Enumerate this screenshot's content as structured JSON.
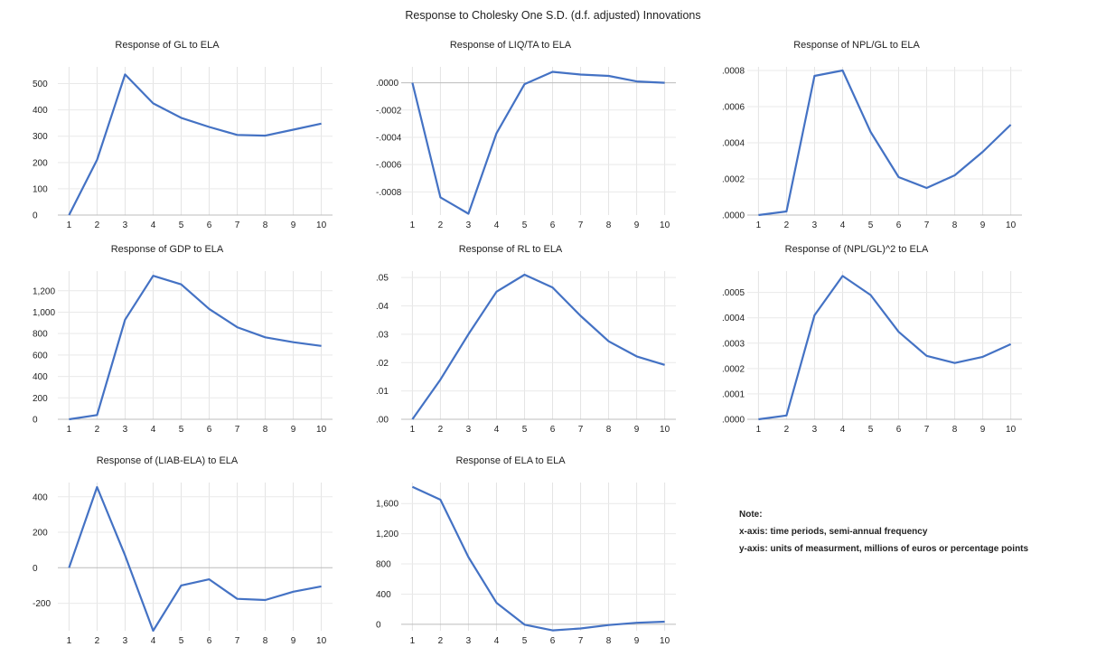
{
  "title": "Response to Cholesky One S.D. (d.f. adjusted) Innovations",
  "line_color": "#4472C4",
  "note": {
    "heading": "Note:",
    "lines": [
      "x-axis: time periods, semi-annual frequency",
      "y-axis: units of measurment, millions of euros or percentage points"
    ]
  },
  "chart_data": [
    {
      "type": "line",
      "title": "Response of GL to ELA",
      "x": [
        1,
        2,
        3,
        4,
        5,
        6,
        7,
        8,
        9,
        10
      ],
      "values": [
        0,
        210,
        535,
        425,
        370,
        335,
        305,
        302,
        325,
        348
      ],
      "ylim": [
        0,
        550
      ],
      "yticks": [
        0,
        100,
        200,
        300,
        400,
        500
      ],
      "yticklabels": [
        "0",
        "100",
        "200",
        "300",
        "400",
        "500"
      ]
    },
    {
      "type": "line",
      "title": "Response of LIQ/TA to ELA",
      "x": [
        1,
        2,
        3,
        4,
        5,
        6,
        7,
        8,
        9,
        10
      ],
      "values": [
        0.0,
        -0.00084,
        -0.00096,
        -0.00037,
        -1e-05,
        8e-05,
        6e-05,
        5e-05,
        1e-05,
        0.0
      ],
      "ylim": [
        -0.00097,
        9e-05
      ],
      "yticks": [
        0,
        -0.0002,
        -0.0004,
        -0.0006,
        -0.0008
      ],
      "yticklabels": [
        ".0000",
        "-.0002",
        "-.0004",
        "-.0006",
        "-.0008"
      ]
    },
    {
      "type": "line",
      "title": "Response of NPL/GL to ELA",
      "x": [
        1,
        2,
        3,
        4,
        5,
        6,
        7,
        8,
        9,
        10
      ],
      "values": [
        0.0,
        2e-05,
        0.00077,
        0.0008,
        0.00046,
        0.00021,
        0.00015,
        0.00022,
        0.00035,
        0.0005
      ],
      "ylim": [
        0,
        0.0008
      ],
      "yticks": [
        0,
        0.0002,
        0.0004,
        0.0006,
        0.0008
      ],
      "yticklabels": [
        ".0000",
        ".0002",
        ".0004",
        ".0006",
        ".0008"
      ]
    },
    {
      "type": "line",
      "title": "Response of GDP to ELA",
      "x": [
        1,
        2,
        3,
        4,
        5,
        6,
        7,
        8,
        9,
        10
      ],
      "values": [
        0,
        40,
        930,
        1340,
        1260,
        1030,
        860,
        765,
        720,
        685
      ],
      "ylim": [
        0,
        1350
      ],
      "yticks": [
        0,
        200,
        400,
        600,
        800,
        1000,
        1200
      ],
      "yticklabels": [
        "0",
        "200",
        "400",
        "600",
        "800",
        "1,000",
        "1,200"
      ]
    },
    {
      "type": "line",
      "title": "Response of RL to ELA",
      "x": [
        1,
        2,
        3,
        4,
        5,
        6,
        7,
        8,
        9,
        10
      ],
      "values": [
        0.0,
        0.014,
        0.03,
        0.045,
        0.051,
        0.0465,
        0.0365,
        0.0275,
        0.0222,
        0.0192
      ],
      "ylim": [
        0,
        0.051
      ],
      "yticks": [
        0,
        0.01,
        0.02,
        0.03,
        0.04,
        0.05
      ],
      "yticklabels": [
        ".00",
        ".01",
        ".02",
        ".03",
        ".04",
        ".05"
      ]
    },
    {
      "type": "line",
      "title": "Response of (NPL/GL)^2 to ELA",
      "x": [
        1,
        2,
        3,
        4,
        5,
        6,
        7,
        8,
        9,
        10
      ],
      "values": [
        0.0,
        1.5e-05,
        0.00041,
        0.000565,
        0.00049,
        0.000345,
        0.00025,
        0.000222,
        0.000246,
        0.000296
      ],
      "ylim": [
        0,
        0.00057
      ],
      "yticks": [
        0,
        0.0001,
        0.0002,
        0.0003,
        0.0004,
        0.0005
      ],
      "yticklabels": [
        ".0000",
        ".0001",
        ".0002",
        ".0003",
        ".0004",
        ".0005"
      ]
    },
    {
      "type": "line",
      "title": "Response of (LIAB-ELA) to ELA",
      "x": [
        1,
        2,
        3,
        4,
        5,
        6,
        7,
        8,
        9,
        10
      ],
      "values": [
        0,
        455,
        70,
        -355,
        -100,
        -65,
        -175,
        -182,
        -135,
        -105
      ],
      "ylim": [
        -355,
        460
      ],
      "yticks": [
        -200,
        0,
        200,
        400
      ],
      "yticklabels": [
        "-200",
        "0",
        "200",
        "400"
      ]
    },
    {
      "type": "line",
      "title": "Response of ELA to ELA",
      "x": [
        1,
        2,
        3,
        4,
        5,
        6,
        7,
        8,
        9,
        10
      ],
      "values": [
        1820,
        1650,
        890,
        285,
        -5,
        -80,
        -55,
        -10,
        20,
        35
      ],
      "ylim": [
        -85,
        1830
      ],
      "yticks": [
        0,
        400,
        800,
        1200,
        1600
      ],
      "yticklabels": [
        "0",
        "400",
        "800",
        "1,200",
        "1,600"
      ]
    }
  ]
}
